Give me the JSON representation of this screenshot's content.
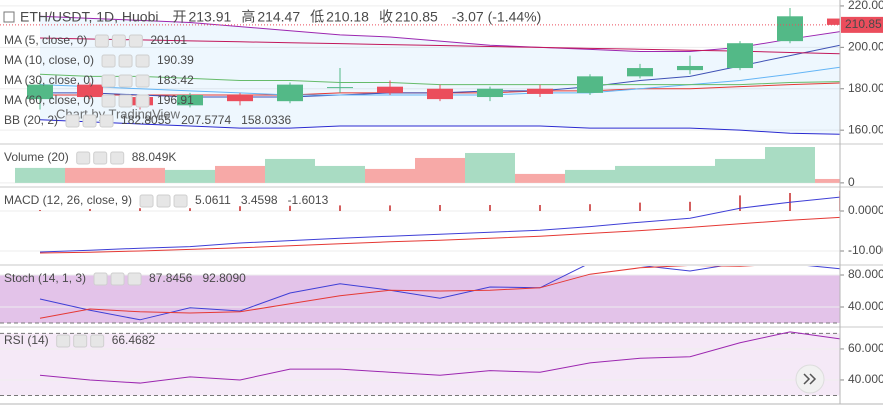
{
  "chart_data": [
    {
      "type": "candlestick",
      "title": "ETH/USDT, 1D, Huobi",
      "header": {
        "open_label": "开",
        "high_label": "高",
        "low_label": "低",
        "close_label": "收",
        "change": "-3.07 (-1.44%)"
      },
      "watermark": "Chart by TradingView",
      "open": [
        175,
        182,
        176,
        172,
        177,
        174,
        180.5,
        181,
        180,
        176,
        180,
        178,
        186,
        189,
        190,
        203,
        213.91
      ],
      "high": [
        184,
        183,
        177,
        178,
        178,
        183,
        190,
        184,
        182,
        181,
        182,
        187,
        192,
        196,
        203,
        219,
        214.47
      ],
      "low": [
        170,
        175,
        170,
        171,
        172,
        173,
        178,
        177,
        174,
        174,
        176,
        177,
        185,
        187,
        189,
        202,
        210.18
      ],
      "close": [
        182,
        176,
        172,
        177,
        174,
        182,
        180.8,
        178,
        175,
        180,
        177.5,
        186,
        190,
        191,
        202,
        215,
        210.85
      ],
      "up_color": "#53b987",
      "down_color": "#eb4d5c",
      "ylim": [
        153.8,
        221.9
      ],
      "yticks": [
        {
          "value": 160,
          "label": "160.00"
        },
        {
          "value": 180,
          "label": "180.00"
        },
        {
          "value": 200,
          "label": "200.00"
        },
        {
          "value": 220,
          "label": "220.00"
        }
      ],
      "grid": true,
      "overlays": [
        {
          "name": "MA (5, close, 0)",
          "color": "#3f51b5",
          "values": [
            178,
            178,
            177,
            176,
            176,
            176,
            177,
            178,
            178,
            179,
            179,
            181,
            184,
            186,
            191,
            196,
            201.01
          ]
        },
        {
          "name": "MA (10, close, 0)",
          "color": "#64b5f6",
          "values": [
            182,
            181,
            180,
            179,
            178,
            177,
            177,
            177,
            177,
            177,
            178,
            178,
            180,
            182,
            184,
            187,
            190.39
          ]
        },
        {
          "name": "MA (30, close, 0)",
          "color": "#66bb6a",
          "values": [
            187,
            186,
            186,
            185,
            184,
            184,
            183,
            183,
            182,
            182,
            182,
            182,
            182,
            182,
            182,
            183,
            183.42
          ]
        },
        {
          "name": "MA (60, close, 0)",
          "color": "#c2185b",
          "values": [
            204.5,
            204,
            203.6,
            203.1,
            202.7,
            202.2,
            201.8,
            201.3,
            200.9,
            200.4,
            200,
            199.5,
            199.1,
            198.6,
            198.2,
            197.5,
            196.91
          ]
        }
      ],
      "bands": {
        "name": "BB (20, 2)",
        "fill": "rgba(33,150,243,0.08)",
        "series": [
          {
            "color": "#e53935",
            "values": [
              177,
              177,
              177,
              177,
              177,
              177,
              178,
              178,
              178,
              178,
              179,
              179,
              180,
              180,
              181,
              182,
              182.8055
            ]
          },
          {
            "color": "#9c27b0",
            "values": [
              215,
              214,
              213,
              212,
              210,
              208,
              206,
              205,
              203,
              201,
              200,
              199,
              198,
              198,
              200,
              204,
              207.5774
            ]
          },
          {
            "color": "#2a2ad0",
            "values": [
              165,
              164,
              163,
              162,
              161,
              161,
              162,
              162,
              162,
              162,
              162,
              161,
              161,
              161,
              160,
              158.5,
              158.0336
            ]
          }
        ]
      }
    },
    {
      "type": "bar",
      "title": "Volume (20)",
      "values": [
        336000,
        336000,
        336000,
        291000,
        380000,
        537000,
        380000,
        313000,
        559000,
        671000,
        201000,
        291000,
        380000,
        380000,
        537000,
        805000,
        88049
      ],
      "value_labels": [
        null,
        null,
        null,
        null,
        null,
        null,
        null,
        null,
        null,
        null,
        null,
        null,
        null,
        null,
        null,
        null,
        "88.049K"
      ],
      "up_color": "#a9dcc3",
      "down_color": "#f7a9a7",
      "ylim": [
        -70000,
        850000
      ],
      "yticks": [
        0
      ]
    },
    {
      "type": "line",
      "title": "MACD (12, 26, close, 9)",
      "ylim": [
        -13.5,
        5.75
      ],
      "yticks": [
        {
          "value": 0,
          "label": "0.0000"
        },
        {
          "value": -10,
          "label": "-10.0000"
        }
      ],
      "series": [
        {
          "style": "histogram",
          "color": "#c62828",
          "values": [
            0.25,
            0.5,
            0.7,
            0.7,
            1.2,
            1.3,
            1.4,
            1.4,
            1.5,
            1.5,
            1.5,
            1.7,
            2.1,
            2.3,
            3.9,
            4.5,
            5.0611
          ]
        },
        {
          "color": "#3f3fd6",
          "values": [
            -10.25,
            -9.8,
            -9.3,
            -8.9,
            -8.0,
            -7.4,
            -6.8,
            -6.3,
            -5.8,
            -5.3,
            -4.8,
            -3.9,
            -2.8,
            -1.8,
            0.7,
            2.2,
            3.4598
          ]
        },
        {
          "color": "#e53935",
          "values": [
            -10.5,
            -10.3,
            -10,
            -9.6,
            -9.2,
            -8.7,
            -8.2,
            -7.7,
            -7.3,
            -6.8,
            -6.3,
            -5.6,
            -4.9,
            -4.1,
            -3.2,
            -2.3,
            -1.6013
          ]
        }
      ]
    },
    {
      "type": "line",
      "title": "Stoch (14, 1, 3)",
      "ylim": [
        16.25,
        91.25
      ],
      "yticks": [
        {
          "value": 80,
          "label": "80.0000"
        },
        {
          "value": 40,
          "label": "40.0000"
        }
      ],
      "band": [
        20,
        80
      ],
      "band_color": "rgba(156,39,176,0.28)",
      "series": [
        {
          "color": "#3f3fd6",
          "values": [
            50,
            36,
            24,
            39,
            35,
            57.5,
            69,
            61,
            51,
            65,
            64,
            95,
            92,
            85,
            95,
            94,
            87.8456
          ]
        },
        {
          "color": "#e53935",
          "values": [
            26,
            37.5,
            34,
            32.5,
            34,
            44,
            54,
            61,
            60,
            61,
            64,
            81,
            89,
            92,
            91,
            94,
            92.809
          ],
          "value_labels": [
            null,
            null,
            null,
            null,
            null,
            null,
            null,
            null,
            null,
            null,
            null,
            null,
            null,
            null,
            null,
            null,
            "92.8090"
          ]
        }
      ]
    },
    {
      "type": "line",
      "title": "RSI (14)",
      "ylim": [
        24.5,
        73.5
      ],
      "yticks": [
        {
          "value": 60,
          "label": "60.0000"
        },
        {
          "value": 40,
          "label": "40.0000"
        }
      ],
      "band": [
        30,
        70
      ],
      "band_color": "rgba(156,39,176,0.1)",
      "series": [
        {
          "color": "#9c27b0",
          "values": [
            43,
            40,
            38,
            42,
            40,
            47,
            47,
            45,
            43,
            46,
            45,
            51,
            54,
            55,
            64,
            71,
            66.4682
          ]
        }
      ]
    }
  ]
}
